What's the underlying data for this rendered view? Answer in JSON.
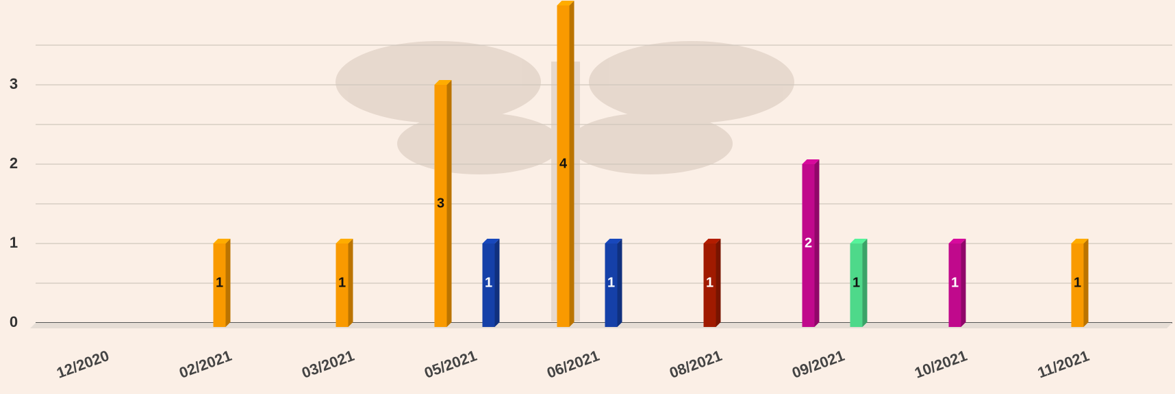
{
  "chart_data": {
    "type": "bar",
    "categories": [
      "12/2020",
      "02/2021",
      "03/2021",
      "05/2021",
      "06/2021",
      "08/2021",
      "09/2021",
      "10/2021",
      "11/2021"
    ],
    "series": [
      {
        "color": "#f99a00",
        "label_color": "#111111",
        "values": [
          null,
          1,
          1,
          3,
          4,
          null,
          null,
          null,
          1
        ]
      },
      {
        "color": "#1540a8",
        "label_color": "#ffffff",
        "values": [
          null,
          null,
          null,
          1,
          1,
          null,
          null,
          null,
          null
        ]
      },
      {
        "color": "#a01a00",
        "label_color": "#ffffff",
        "values": [
          null,
          null,
          null,
          null,
          null,
          1,
          null,
          null,
          null
        ]
      },
      {
        "color": "#c0098c",
        "label_color": "#ffffff",
        "values": [
          null,
          null,
          null,
          null,
          null,
          null,
          2,
          1,
          null
        ]
      },
      {
        "color": "#4ed98a",
        "label_color": "#111111",
        "values": [
          null,
          null,
          null,
          null,
          null,
          null,
          1,
          null,
          null
        ]
      }
    ],
    "ylim": [
      0,
      4
    ],
    "yticks": [
      0,
      1,
      2,
      3
    ],
    "minor_yticks": [
      0.5,
      1.5,
      2.5,
      3.5
    ],
    "grid": true
  }
}
